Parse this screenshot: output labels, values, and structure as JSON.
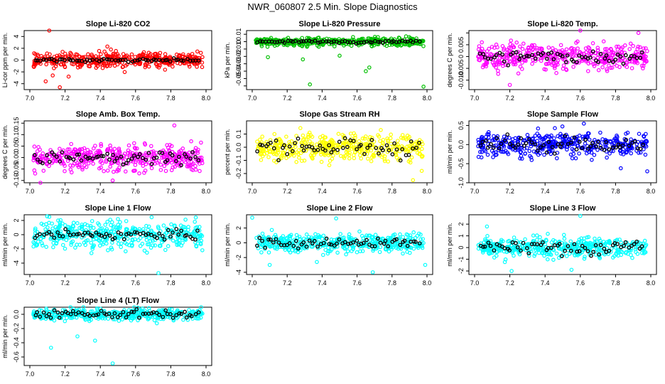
{
  "title": "NWR_060807  2.5 Min. Slope Diagnostics",
  "chart_data": [
    {
      "type": "scatter",
      "title": "Slope Li-820 CO2",
      "ylabel": "Li-cor ppm per min.",
      "xlim": [
        7.0,
        8.0
      ],
      "xticks": [
        "7.0",
        "7.2",
        "7.4",
        "7.6",
        "7.8",
        "8.0"
      ],
      "ylim": [
        -5,
        5
      ],
      "yticks": [
        -4,
        -2,
        0,
        2,
        4
      ],
      "yticklabels": [
        "-4",
        "-2",
        "0",
        "2",
        "4"
      ],
      "colors": {
        "main": "#ff0000",
        "highlight": "#000000"
      },
      "main_spread": 1.1,
      "highlight_spread": 0.25,
      "outliers": [
        [
          7.11,
          5.2
        ],
        [
          7.44,
          2.3
        ],
        [
          7.46,
          1.8
        ],
        [
          7.17,
          -4.6
        ],
        [
          7.09,
          -3.6
        ],
        [
          7.22,
          -2.8
        ],
        [
          7.13,
          -2.6
        ]
      ]
    },
    {
      "type": "scatter",
      "title": "Slope Li-820 Pressure",
      "ylabel": "kPa per min.",
      "xlim": [
        7.0,
        8.0
      ],
      "xticks": [
        "7.0",
        "7.2",
        "7.4",
        "7.6",
        "7.8",
        "8.0"
      ],
      "ylim": [
        -0.065,
        0.015
      ],
      "yticks": [
        -0.06,
        -0.05,
        -0.04,
        -0.03,
        -0.02,
        -0.01,
        0,
        0.01
      ],
      "yticklabels": [
        "",
        "-0.05",
        "-0.04",
        "-0.03",
        "-0.02",
        "-0.01",
        "0",
        "0.01"
      ],
      "colors": {
        "main": "#00c000",
        "highlight": "#000000"
      },
      "main_spread": 0.0045,
      "highlight_spread": 0.0015,
      "outliers": [
        [
          7.33,
          -0.058
        ],
        [
          7.98,
          -0.061
        ],
        [
          7.65,
          -0.04
        ],
        [
          7.67,
          -0.035
        ],
        [
          7.09,
          -0.021
        ],
        [
          7.29,
          -0.024
        ],
        [
          7.5,
          -0.019
        ]
      ]
    },
    {
      "type": "scatter",
      "title": "Slope Li-820 Temp.",
      "ylabel": "degrees C per min.",
      "xlim": [
        7.0,
        8.0
      ],
      "xticks": [
        "7.0",
        "7.2",
        "7.4",
        "7.6",
        "7.8",
        "8.0"
      ],
      "ylim": [
        -0.014,
        0.011
      ],
      "yticks": [
        -0.01,
        -0.005,
        0,
        0.005,
        0.01
      ],
      "yticklabels": [
        "-0.010",
        "-0.005",
        "0",
        "0.005",
        ""
      ],
      "colors": {
        "main": "#ff00ff",
        "highlight": "#000000"
      },
      "main_spread": 0.0045,
      "highlight_spread": 0.0025,
      "outliers": [
        [
          7.2,
          -0.012
        ],
        [
          7.6,
          0.011
        ],
        [
          7.93,
          0.01
        ]
      ]
    },
    {
      "type": "scatter",
      "title": "Slope Amb. Box Temp.",
      "ylabel": "degrees C per min.",
      "xlim": [
        7.0,
        8.0
      ],
      "xticks": [
        "7.0",
        "7.2",
        "7.4",
        "7.6",
        "7.8",
        "8.0"
      ],
      "ylim": [
        -0.11,
        0.16
      ],
      "yticks": [
        -0.1,
        -0.05,
        0,
        0.05,
        0.1,
        0.15
      ],
      "yticklabels": [
        "-0.10",
        "-0.05",
        "0.00",
        "0.05",
        "0.10",
        "0.15"
      ],
      "colors": {
        "main": "#ff00ff",
        "highlight": "#000000"
      },
      "main_spread": 0.045,
      "highlight_spread": 0.025,
      "outliers": [
        [
          7.82,
          0.14
        ],
        [
          7.06,
          -0.11
        ],
        [
          7.47,
          -0.1
        ]
      ]
    },
    {
      "type": "scatter",
      "title": "Slope Gas Stream RH",
      "ylabel": "percent per min.",
      "xlim": [
        7.0,
        8.0
      ],
      "xticks": [
        "7.0",
        "7.2",
        "7.4",
        "7.6",
        "7.8",
        "8.0"
      ],
      "ylim": [
        -0.27,
        0.2
      ],
      "yticks": [
        -0.2,
        -0.1,
        0,
        0.1
      ],
      "yticklabels": [
        "-0.2",
        "-0.1",
        "0.0",
        "0.1"
      ],
      "colors": {
        "main": "#ffff00",
        "highlight": "#000000"
      },
      "main_spread": 0.085,
      "highlight_spread": 0.06,
      "outliers": [
        [
          7.92,
          -0.25
        ],
        [
          7.97,
          -0.18
        ]
      ]
    },
    {
      "type": "scatter",
      "title": "Slope Sample Flow",
      "ylabel": "ml/min per min.",
      "xlim": [
        7.0,
        8.0
      ],
      "xticks": [
        "7.0",
        "7.2",
        "7.4",
        "7.6",
        "7.8",
        "8.0"
      ],
      "ylim": [
        -1.0,
        0.62
      ],
      "yticks": [
        -1.0,
        -0.5,
        0,
        0.5
      ],
      "yticklabels": [
        "-1.0",
        "-0.5",
        "0.0",
        "0.5"
      ],
      "colors": {
        "main": "#0000ff",
        "highlight": "#000000"
      },
      "main_spread": 0.25,
      "highlight_spread": 0.2,
      "outliers": [
        [
          7.62,
          0.55
        ],
        [
          7.36,
          0.42
        ],
        [
          7.98,
          -0.7
        ],
        [
          7.83,
          -0.62
        ]
      ]
    },
    {
      "type": "scatter",
      "title": "Slope Line 1 Flow",
      "ylabel": "ml/min per min.",
      "xlim": [
        7.0,
        8.0
      ],
      "xticks": [
        "7.0",
        "7.2",
        "7.4",
        "7.6",
        "7.8",
        "8.0"
      ],
      "ylim": [
        -5.6,
        2.8
      ],
      "yticks": [
        -4,
        -2,
        0,
        2
      ],
      "yticklabels": [
        "-4",
        "-2",
        "0",
        "2"
      ],
      "colors": {
        "main": "#00ffff",
        "highlight": "#000000"
      },
      "main_spread": 1.6,
      "highlight_spread": 0.6,
      "outliers": [
        [
          7.11,
          2.5
        ],
        [
          7.73,
          -5.4
        ],
        [
          7.5,
          2.2
        ]
      ]
    },
    {
      "type": "scatter",
      "title": "Slope Line 2 Flow",
      "ylabel": "ml/min per min.",
      "xlim": [
        7.0,
        8.0
      ],
      "xticks": [
        "7.0",
        "7.2",
        "7.4",
        "7.6",
        "7.8",
        "8.0"
      ],
      "ylim": [
        -4.3,
        3.8
      ],
      "yticks": [
        -4,
        -2,
        0,
        2
      ],
      "yticklabels": [
        "-4",
        "-2",
        "0",
        "2"
      ],
      "colors": {
        "main": "#00ffff",
        "highlight": "#000000"
      },
      "main_spread": 1.0,
      "highlight_spread": 0.7,
      "outliers": [
        [
          7.0,
          3.4
        ],
        [
          7.48,
          3.3
        ],
        [
          7.69,
          -4.0
        ],
        [
          7.99,
          -3.0
        ],
        [
          7.1,
          -3.0
        ],
        [
          7.37,
          -2.6
        ]
      ]
    },
    {
      "type": "scatter",
      "title": "Slope Line 3 Flow",
      "ylabel": "ml/min per min.",
      "xlim": [
        7.0,
        8.0
      ],
      "xticks": [
        "7.0",
        "7.2",
        "7.4",
        "7.6",
        "7.8",
        "8.0"
      ],
      "ylim": [
        -2.3,
        2.8
      ],
      "yticks": [
        -2,
        -1,
        0,
        1,
        2
      ],
      "yticklabels": [
        "-2",
        "-1",
        "0",
        "1",
        "2"
      ],
      "colors": {
        "main": "#00ffff",
        "highlight": "#000000"
      },
      "main_spread": 0.65,
      "highlight_spread": 0.55,
      "outliers": [
        [
          7.6,
          2.7
        ],
        [
          7.21,
          -2.0
        ],
        [
          7.07,
          1.8
        ],
        [
          7.55,
          -1.9
        ]
      ]
    },
    {
      "type": "scatter",
      "title": "Slope Line 4 (LT) Flow",
      "ylabel": "ml/min per min.",
      "xlim": [
        7.0,
        8.0
      ],
      "xticks": [
        "7.0",
        "7.2",
        "7.4",
        "7.6",
        "7.8",
        "8.0"
      ],
      "ylim": [
        -0.72,
        0.1
      ],
      "yticks": [
        -0.6,
        -0.4,
        -0.2,
        0
      ],
      "yticklabels": [
        "-0.6",
        "-0.4",
        "-0.2",
        "0.0"
      ],
      "colors": {
        "main": "#00ffff",
        "highlight": "#000000"
      },
      "main_spread": 0.07,
      "highlight_spread": 0.05,
      "outliers": [
        [
          7.47,
          -0.69
        ],
        [
          7.12,
          -0.47
        ],
        [
          7.37,
          -0.37
        ],
        [
          7.27,
          -0.31
        ]
      ]
    }
  ]
}
